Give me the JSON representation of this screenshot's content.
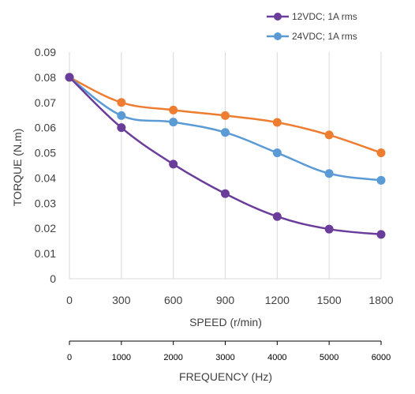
{
  "chart_data": {
    "type": "line",
    "ylabel": "TORQUE (N.m)",
    "xlabel": "SPEED (r/min)",
    "secondary_xlabel": "FREQUENCY (Hz)",
    "categories": [
      "0",
      "300",
      "600",
      "900",
      "1200",
      "1500",
      "1800"
    ],
    "secondary_categories": [
      "0",
      "1000",
      "2000",
      "3000",
      "4000",
      "5000",
      "6000"
    ],
    "y_ticks": [
      "0",
      "0.01",
      "0.02",
      "0.03",
      "0.04",
      "0.05",
      "0.06",
      "0.07",
      "0.08",
      "0.09"
    ],
    "ylim": [
      0,
      0.09
    ],
    "grid": "vertical",
    "legend_position": "top-right",
    "series": [
      {
        "name": "12VDC; 1A rms",
        "color": "#6a3d9a",
        "in_legend": true,
        "values": [
          0.08,
          0.06,
          0.0455,
          0.0338,
          0.0247,
          0.0197,
          0.0176
        ]
      },
      {
        "name": "24VDC; 1A rms",
        "color": "#5b9bd5",
        "in_legend": true,
        "values": [
          0.08,
          0.0648,
          0.0622,
          0.0581,
          0.05,
          0.0418,
          0.0391
        ]
      },
      {
        "color": "#ed7d31",
        "in_legend": false,
        "values": [
          0.08,
          0.07,
          0.067,
          0.0648,
          0.0621,
          0.0571,
          0.05
        ]
      }
    ]
  }
}
